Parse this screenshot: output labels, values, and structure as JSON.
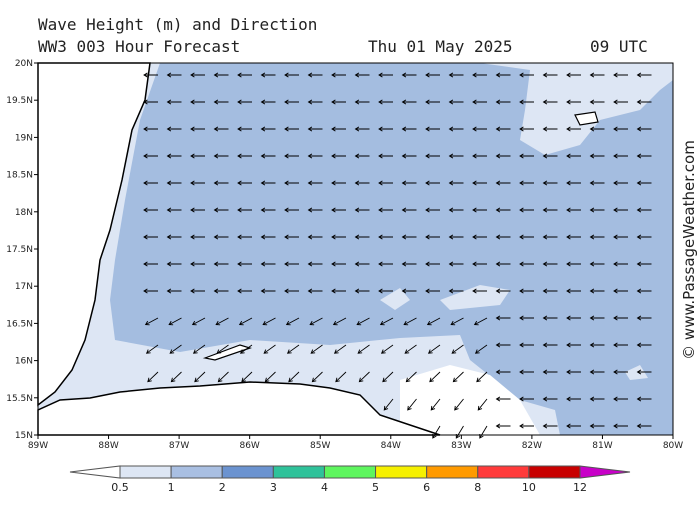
{
  "header": {
    "title": "Wave Height (m) and Direction",
    "subtitle": "WW3 003 Hour Forecast",
    "date": "Thu 01 May 2025",
    "time": "09 UTC"
  },
  "map": {
    "xticks": [
      "89W",
      "88W",
      "87W",
      "86W",
      "85W",
      "84W",
      "83W",
      "82W",
      "81W",
      "80W"
    ],
    "yticks": [
      "20N",
      "19.5N",
      "19N",
      "18.5N",
      "18N",
      "17.5N",
      "17N",
      "16.5N",
      "16N",
      "15.5N",
      "15N"
    ]
  },
  "colorbar": {
    "labels": [
      0.5,
      1,
      2,
      3,
      4,
      5,
      6,
      8,
      10,
      12
    ]
  },
  "watermark": "© www.PassageWeather.com"
}
